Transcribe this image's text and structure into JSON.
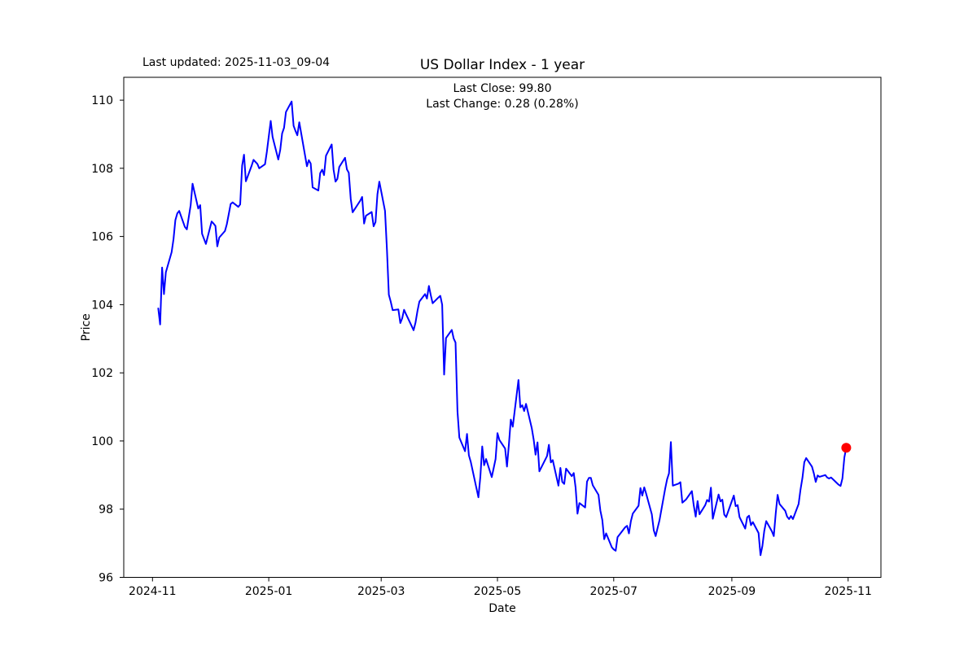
{
  "figure": {
    "title": "US Dollar Index - 1 year",
    "last_updated": "Last updated: 2025-11-03_09-04",
    "annotation": {
      "line1": "Last Close: 99.80",
      "line2": "Last Change: 0.28 (0.28%)"
    },
    "background_color": "#ffffff",
    "text_color": "#000000"
  },
  "chart_data": {
    "type": "line",
    "title": "US Dollar Index - 1 year",
    "xlabel": "Date",
    "ylabel": "Price",
    "grid": false,
    "legend": "none",
    "line_color": "#0000ff",
    "line_width": 2,
    "marker_color": "#ff0000",
    "last_close": 99.8,
    "last_change": "0.28 (0.28%)",
    "ylim": [
      96.0,
      110.67
    ],
    "xlim": [
      "2024-10-17",
      "2025-11-17"
    ],
    "y_ticks": [
      96,
      98,
      100,
      102,
      104,
      106,
      108,
      110
    ],
    "x_ticks": [
      {
        "label": "2024-11",
        "date": "2024-11-01"
      },
      {
        "label": "2025-01",
        "date": "2025-01-01"
      },
      {
        "label": "2025-03",
        "date": "2025-03-01"
      },
      {
        "label": "2025-05",
        "date": "2025-05-01"
      },
      {
        "label": "2025-07",
        "date": "2025-07-01"
      },
      {
        "label": "2025-09",
        "date": "2025-09-01"
      },
      {
        "label": "2025-11",
        "date": "2025-11-01"
      }
    ],
    "last_point": {
      "date": "2025-10-31",
      "value": 99.8
    },
    "dates": [
      "2024-11-04",
      "2024-11-05",
      "2024-11-06",
      "2024-11-07",
      "2024-11-08",
      "2024-11-11",
      "2024-11-12",
      "2024-11-13",
      "2024-11-14",
      "2024-11-15",
      "2024-11-18",
      "2024-11-19",
      "2024-11-20",
      "2024-11-21",
      "2024-11-22",
      "2024-11-25",
      "2024-11-26",
      "2024-11-27",
      "2024-11-29",
      "2024-12-02",
      "2024-12-03",
      "2024-12-04",
      "2024-12-05",
      "2024-12-06",
      "2024-12-09",
      "2024-12-10",
      "2024-12-11",
      "2024-12-12",
      "2024-12-13",
      "2024-12-16",
      "2024-12-17",
      "2024-12-18",
      "2024-12-19",
      "2024-12-20",
      "2024-12-23",
      "2024-12-24",
      "2024-12-26",
      "2024-12-27",
      "2024-12-30",
      "2024-12-31",
      "2025-01-02",
      "2025-01-03",
      "2025-01-06",
      "2025-01-07",
      "2025-01-08",
      "2025-01-09",
      "2025-01-10",
      "2025-01-13",
      "2025-01-14",
      "2025-01-15",
      "2025-01-16",
      "2025-01-17",
      "2025-01-21",
      "2025-01-22",
      "2025-01-23",
      "2025-01-24",
      "2025-01-27",
      "2025-01-28",
      "2025-01-29",
      "2025-01-30",
      "2025-01-31",
      "2025-02-03",
      "2025-02-04",
      "2025-02-05",
      "2025-02-06",
      "2025-02-07",
      "2025-02-10",
      "2025-02-11",
      "2025-02-12",
      "2025-02-13",
      "2025-02-14",
      "2025-02-18",
      "2025-02-19",
      "2025-02-20",
      "2025-02-21",
      "2025-02-24",
      "2025-02-25",
      "2025-02-26",
      "2025-02-27",
      "2025-02-28",
      "2025-03-03",
      "2025-03-04",
      "2025-03-05",
      "2025-03-06",
      "2025-03-07",
      "2025-03-10",
      "2025-03-11",
      "2025-03-12",
      "2025-03-13",
      "2025-03-14",
      "2025-03-17",
      "2025-03-18",
      "2025-03-19",
      "2025-03-20",
      "2025-03-21",
      "2025-03-24",
      "2025-03-25",
      "2025-03-26",
      "2025-03-27",
      "2025-03-28",
      "2025-03-31",
      "2025-04-01",
      "2025-04-02",
      "2025-04-03",
      "2025-04-04",
      "2025-04-07",
      "2025-04-08",
      "2025-04-09",
      "2025-04-10",
      "2025-04-11",
      "2025-04-14",
      "2025-04-15",
      "2025-04-16",
      "2025-04-17",
      "2025-04-21",
      "2025-04-22",
      "2025-04-23",
      "2025-04-24",
      "2025-04-25",
      "2025-04-28",
      "2025-04-29",
      "2025-04-30",
      "2025-05-01",
      "2025-05-02",
      "2025-05-05",
      "2025-05-06",
      "2025-05-07",
      "2025-05-08",
      "2025-05-09",
      "2025-05-12",
      "2025-05-13",
      "2025-05-14",
      "2025-05-15",
      "2025-05-16",
      "2025-05-19",
      "2025-05-20",
      "2025-05-21",
      "2025-05-22",
      "2025-05-23",
      "2025-05-27",
      "2025-05-28",
      "2025-05-29",
      "2025-05-30",
      "2025-06-02",
      "2025-06-03",
      "2025-06-04",
      "2025-06-05",
      "2025-06-06",
      "2025-06-09",
      "2025-06-10",
      "2025-06-11",
      "2025-06-12",
      "2025-06-13",
      "2025-06-16",
      "2025-06-17",
      "2025-06-18",
      "2025-06-19",
      "2025-06-20",
      "2025-06-23",
      "2025-06-24",
      "2025-06-25",
      "2025-06-26",
      "2025-06-27",
      "2025-06-30",
      "2025-07-01",
      "2025-07-02",
      "2025-07-03",
      "2025-07-07",
      "2025-07-08",
      "2025-07-09",
      "2025-07-10",
      "2025-07-11",
      "2025-07-14",
      "2025-07-15",
      "2025-07-16",
      "2025-07-17",
      "2025-07-18",
      "2025-07-21",
      "2025-07-22",
      "2025-07-23",
      "2025-07-24",
      "2025-07-25",
      "2025-07-28",
      "2025-07-29",
      "2025-07-30",
      "2025-07-31",
      "2025-08-01",
      "2025-08-04",
      "2025-08-05",
      "2025-08-06",
      "2025-08-07",
      "2025-08-08",
      "2025-08-11",
      "2025-08-12",
      "2025-08-13",
      "2025-08-14",
      "2025-08-15",
      "2025-08-18",
      "2025-08-19",
      "2025-08-20",
      "2025-08-21",
      "2025-08-22",
      "2025-08-25",
      "2025-08-26",
      "2025-08-27",
      "2025-08-28",
      "2025-08-29",
      "2025-09-02",
      "2025-09-03",
      "2025-09-04",
      "2025-09-05",
      "2025-09-08",
      "2025-09-09",
      "2025-09-10",
      "2025-09-11",
      "2025-09-12",
      "2025-09-15",
      "2025-09-16",
      "2025-09-17",
      "2025-09-18",
      "2025-09-19",
      "2025-09-22",
      "2025-09-23",
      "2025-09-24",
      "2025-09-25",
      "2025-09-26",
      "2025-09-29",
      "2025-09-30",
      "2025-10-01",
      "2025-10-02",
      "2025-10-03",
      "2025-10-06",
      "2025-10-07",
      "2025-10-08",
      "2025-10-09",
      "2025-10-10",
      "2025-10-13",
      "2025-10-14",
      "2025-10-15",
      "2025-10-16",
      "2025-10-17",
      "2025-10-20",
      "2025-10-21",
      "2025-10-22",
      "2025-10-23",
      "2025-10-24",
      "2025-10-27",
      "2025-10-28",
      "2025-10-29",
      "2025-10-30",
      "2025-10-31"
    ],
    "values": [
      103.89,
      103.42,
      105.09,
      104.31,
      104.95,
      105.54,
      105.92,
      106.48,
      106.68,
      106.75,
      106.28,
      106.21,
      106.56,
      106.92,
      107.55,
      106.82,
      106.92,
      106.08,
      105.78,
      106.44,
      106.38,
      106.31,
      105.71,
      105.97,
      106.16,
      106.36,
      106.66,
      106.95,
      107.0,
      106.87,
      106.94,
      108.08,
      108.4,
      107.62,
      108.08,
      108.25,
      108.13,
      108.0,
      108.12,
      108.49,
      109.39,
      108.92,
      108.26,
      108.54,
      109.02,
      109.19,
      109.65,
      109.96,
      109.25,
      109.1,
      108.97,
      109.35,
      108.06,
      108.24,
      108.14,
      107.44,
      107.35,
      107.86,
      107.96,
      107.8,
      108.37,
      108.7,
      107.96,
      107.61,
      107.69,
      108.04,
      108.31,
      107.97,
      107.87,
      107.1,
      106.71,
      107.05,
      107.16,
      106.38,
      106.61,
      106.72,
      106.3,
      106.42,
      107.24,
      107.61,
      106.75,
      105.6,
      104.29,
      104.09,
      103.84,
      103.86,
      103.46,
      103.6,
      103.85,
      103.72,
      103.37,
      103.25,
      103.48,
      103.81,
      104.09,
      104.31,
      104.18,
      104.55,
      104.28,
      104.04,
      104.21,
      104.26,
      104.0,
      101.95,
      103.02,
      103.26,
      103.01,
      102.89,
      100.87,
      100.1,
      99.7,
      100.21,
      99.58,
      99.38,
      98.35,
      98.95,
      99.84,
      99.29,
      99.47,
      98.94,
      99.2,
      99.47,
      100.23,
      100.03,
      99.78,
      99.25,
      99.91,
      100.63,
      100.42,
      101.79,
      100.99,
      101.05,
      100.88,
      101.09,
      100.37,
      100.04,
      99.6,
      99.96,
      99.11,
      99.56,
      99.89,
      99.37,
      99.44,
      98.69,
      99.21,
      98.8,
      98.74,
      99.19,
      98.97,
      99.06,
      98.63,
      97.87,
      98.18,
      98.05,
      98.81,
      98.92,
      98.92,
      98.7,
      98.42,
      97.96,
      97.68,
      97.12,
      97.29,
      96.88,
      96.82,
      96.78,
      97.18,
      97.47,
      97.51,
      97.29,
      97.65,
      97.87,
      98.1,
      98.62,
      98.4,
      98.64,
      98.46,
      97.85,
      97.38,
      97.21,
      97.45,
      97.67,
      98.6,
      98.88,
      99.05,
      99.97,
      98.69,
      98.75,
      98.79,
      98.19,
      98.24,
      98.29,
      98.53,
      98.11,
      97.78,
      98.24,
      97.85,
      98.12,
      98.27,
      98.22,
      98.63,
      97.72,
      98.43,
      98.23,
      98.28,
      97.84,
      97.77,
      98.4,
      98.09,
      98.12,
      97.77,
      97.43,
      97.76,
      97.81,
      97.53,
      97.62,
      97.3,
      96.65,
      96.92,
      97.36,
      97.65,
      97.35,
      97.21,
      97.88,
      98.42,
      98.15,
      97.95,
      97.78,
      97.71,
      97.8,
      97.71,
      98.15,
      98.57,
      98.92,
      99.38,
      99.5,
      99.25,
      99.05,
      98.8,
      98.99,
      98.95,
      99.0,
      98.93,
      98.9,
      98.93,
      98.88,
      98.72,
      98.68,
      98.9,
      99.52,
      99.8
    ]
  }
}
